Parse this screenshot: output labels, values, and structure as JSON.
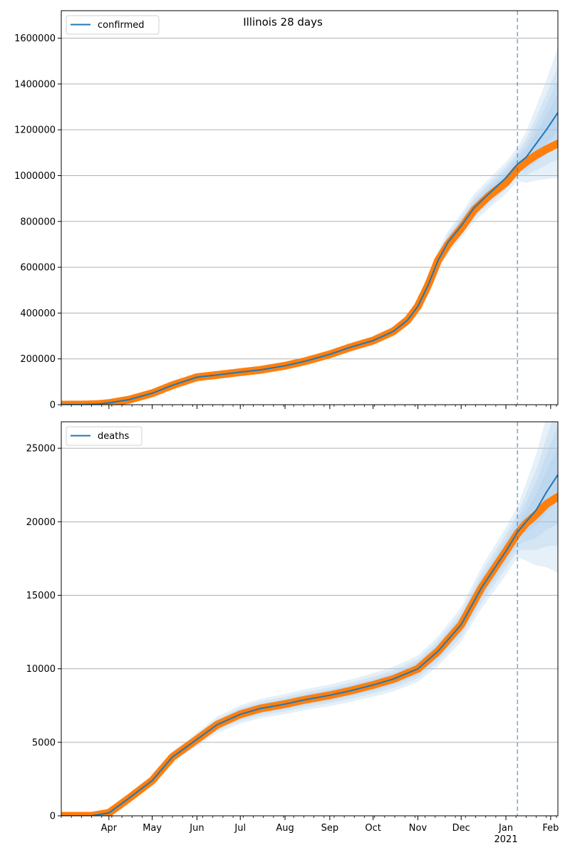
{
  "title": "Illinois 28 days",
  "colors": {
    "model": "#1f77b4",
    "observed": "#ff7f0e",
    "band": "#a6c8e8",
    "divider": "#1f77b4",
    "grid": "#b0b0b0"
  },
  "x_axis": {
    "range": [
      "2020-02-28",
      "2021-02-06"
    ],
    "month_labels": [
      {
        "date": "2020-04-01",
        "label": "Apr"
      },
      {
        "date": "2020-05-01",
        "label": "May"
      },
      {
        "date": "2020-06-01",
        "label": "Jun"
      },
      {
        "date": "2020-07-01",
        "label": "Jul"
      },
      {
        "date": "2020-08-01",
        "label": "Aug"
      },
      {
        "date": "2020-09-01",
        "label": "Sep"
      },
      {
        "date": "2020-10-01",
        "label": "Oct"
      },
      {
        "date": "2020-11-01",
        "label": "Nov"
      },
      {
        "date": "2020-12-01",
        "label": "Dec"
      },
      {
        "date": "2021-01-01",
        "label": "Jan"
      },
      {
        "date": "2021-02-01",
        "label": "Feb"
      }
    ],
    "year_label": {
      "date": "2021-01-01",
      "label": "2021"
    },
    "forecast_start": "2021-01-09"
  },
  "chart_data": [
    {
      "type": "line",
      "legend": "confirmed",
      "legend_position": "top-left",
      "grid": "y",
      "ylim": [
        0,
        1720000
      ],
      "yticks": [
        0,
        200000,
        400000,
        600000,
        800000,
        1000000,
        1200000,
        1400000,
        1600000
      ],
      "ytick_labels": [
        "0",
        "200000",
        "400000",
        "600000",
        "800000",
        "1000000",
        "1200000",
        "1400000",
        "1600000"
      ],
      "series": [
        {
          "name": "confirmed",
          "role": "model",
          "points": [
            [
              "2020-02-28",
              0
            ],
            [
              "2020-03-15",
              500
            ],
            [
              "2020-03-25",
              3000
            ],
            [
              "2020-04-01",
              8000
            ],
            [
              "2020-04-15",
              22000
            ],
            [
              "2020-05-01",
              50000
            ],
            [
              "2020-05-15",
              85000
            ],
            [
              "2020-06-01",
              120000
            ],
            [
              "2020-06-15",
              130000
            ],
            [
              "2020-07-01",
              142000
            ],
            [
              "2020-07-15",
              152000
            ],
            [
              "2020-08-01",
              170000
            ],
            [
              "2020-08-15",
              190000
            ],
            [
              "2020-09-01",
              220000
            ],
            [
              "2020-09-15",
              250000
            ],
            [
              "2020-10-01",
              280000
            ],
            [
              "2020-10-15",
              320000
            ],
            [
              "2020-10-25",
              370000
            ],
            [
              "2020-11-01",
              430000
            ],
            [
              "2020-11-08",
              520000
            ],
            [
              "2020-11-15",
              630000
            ],
            [
              "2020-11-22",
              710000
            ],
            [
              "2020-12-01",
              780000
            ],
            [
              "2020-12-10",
              860000
            ],
            [
              "2020-12-20",
              920000
            ],
            [
              "2021-01-01",
              990000
            ],
            [
              "2021-01-09",
              1050000
            ],
            [
              "2021-01-15",
              1080000
            ],
            [
              "2021-01-22",
              1140000
            ],
            [
              "2021-01-29",
              1200000
            ],
            [
              "2021-02-06",
              1275000
            ]
          ]
        },
        {
          "name": "",
          "role": "observed",
          "points": [
            [
              "2020-02-28",
              0
            ],
            [
              "2020-03-15",
              500
            ],
            [
              "2020-03-25",
              3000
            ],
            [
              "2020-04-01",
              7000
            ],
            [
              "2020-04-15",
              22000
            ],
            [
              "2020-05-01",
              50000
            ],
            [
              "2020-05-15",
              85000
            ],
            [
              "2020-06-01",
              120000
            ],
            [
              "2020-06-15",
              130000
            ],
            [
              "2020-07-01",
              142000
            ],
            [
              "2020-07-15",
              152000
            ],
            [
              "2020-08-01",
              170000
            ],
            [
              "2020-08-15",
              190000
            ],
            [
              "2020-09-01",
              220000
            ],
            [
              "2020-09-15",
              250000
            ],
            [
              "2020-10-01",
              280000
            ],
            [
              "2020-10-15",
              320000
            ],
            [
              "2020-10-25",
              370000
            ],
            [
              "2020-11-01",
              430000
            ],
            [
              "2020-11-08",
              520000
            ],
            [
              "2020-11-15",
              630000
            ],
            [
              "2020-11-22",
              700000
            ],
            [
              "2020-12-01",
              770000
            ],
            [
              "2020-12-10",
              850000
            ],
            [
              "2020-12-20",
              910000
            ],
            [
              "2021-01-01",
              970000
            ],
            [
              "2021-01-09",
              1030000
            ],
            [
              "2021-01-15",
              1060000
            ],
            [
              "2021-01-22",
              1090000
            ],
            [
              "2021-01-29",
              1115000
            ],
            [
              "2021-02-06",
              1140000
            ]
          ]
        }
      ],
      "bands": [
        0.07,
        0.05,
        0.035,
        0.02
      ]
    },
    {
      "type": "line",
      "legend": "deaths",
      "legend_position": "top-left",
      "grid": "y",
      "ylim": [
        0,
        26800
      ],
      "yticks": [
        0,
        5000,
        10000,
        15000,
        20000,
        25000
      ],
      "ytick_labels": [
        "0",
        "5000",
        "10000",
        "15000",
        "20000",
        "25000"
      ],
      "series": [
        {
          "name": "deaths",
          "role": "model",
          "points": [
            [
              "2020-02-28",
              0
            ],
            [
              "2020-03-20",
              0
            ],
            [
              "2020-04-01",
              200
            ],
            [
              "2020-04-15",
              1200
            ],
            [
              "2020-05-01",
              2400
            ],
            [
              "2020-05-15",
              4000
            ],
            [
              "2020-06-01",
              5200
            ],
            [
              "2020-06-15",
              6200
            ],
            [
              "2020-07-01",
              6900
            ],
            [
              "2020-07-15",
              7300
            ],
            [
              "2020-08-01",
              7600
            ],
            [
              "2020-08-15",
              7900
            ],
            [
              "2020-09-01",
              8200
            ],
            [
              "2020-09-15",
              8500
            ],
            [
              "2020-10-01",
              8900
            ],
            [
              "2020-10-15",
              9300
            ],
            [
              "2020-11-01",
              10000
            ],
            [
              "2020-11-15",
              11200
            ],
            [
              "2020-12-01",
              13000
            ],
            [
              "2020-12-15",
              15500
            ],
            [
              "2021-01-01",
              18000
            ],
            [
              "2021-01-09",
              19300
            ],
            [
              "2021-01-15",
              20000
            ],
            [
              "2021-01-22",
              20800
            ],
            [
              "2021-01-29",
              22000
            ],
            [
              "2021-02-06",
              23200
            ]
          ]
        },
        {
          "name": "",
          "role": "observed",
          "points": [
            [
              "2020-02-28",
              0
            ],
            [
              "2020-03-20",
              0
            ],
            [
              "2020-04-01",
              200
            ],
            [
              "2020-04-15",
              1200
            ],
            [
              "2020-05-01",
              2400
            ],
            [
              "2020-05-15",
              4000
            ],
            [
              "2020-06-01",
              5200
            ],
            [
              "2020-06-15",
              6200
            ],
            [
              "2020-07-01",
              6900
            ],
            [
              "2020-07-15",
              7300
            ],
            [
              "2020-08-01",
              7600
            ],
            [
              "2020-08-15",
              7900
            ],
            [
              "2020-09-01",
              8200
            ],
            [
              "2020-09-15",
              8500
            ],
            [
              "2020-10-01",
              8900
            ],
            [
              "2020-10-15",
              9300
            ],
            [
              "2020-11-01",
              10000
            ],
            [
              "2020-11-15",
              11200
            ],
            [
              "2020-12-01",
              13000
            ],
            [
              "2020-12-15",
              15500
            ],
            [
              "2021-01-01",
              18000
            ],
            [
              "2021-01-09",
              19200
            ],
            [
              "2021-01-15",
              19900
            ],
            [
              "2021-01-22",
              20500
            ],
            [
              "2021-01-29",
              21200
            ],
            [
              "2021-02-06",
              21700
            ]
          ]
        }
      ],
      "bands": [
        0.09,
        0.065,
        0.045,
        0.025
      ]
    }
  ]
}
